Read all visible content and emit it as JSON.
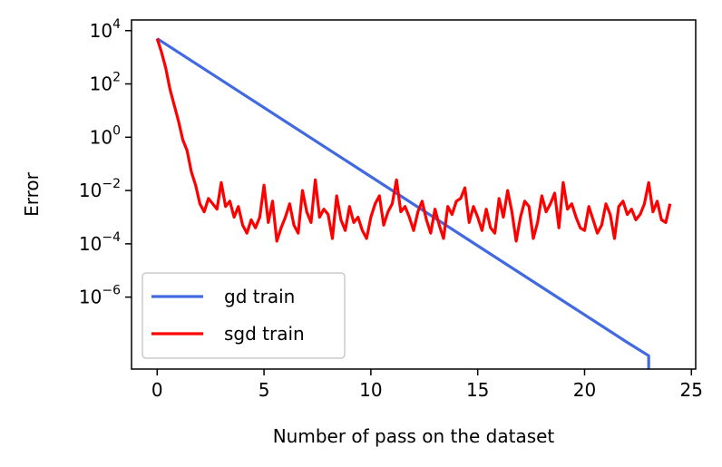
{
  "chart_data": {
    "type": "line",
    "xlabel": "Number of pass on the dataset",
    "ylabel": "Error",
    "yscale": "log",
    "xlim": [
      -1.2,
      25.2
    ],
    "ylim_log10": [
      -8.7,
      4.4
    ],
    "x_ticks": [
      0,
      5,
      10,
      15,
      20,
      25
    ],
    "x_tick_labels": [
      "0",
      "5",
      "10",
      "15",
      "20",
      "25"
    ],
    "y_ticks_log10": [
      4,
      2,
      0,
      -2,
      -4,
      -6
    ],
    "y_tick_labels": [
      {
        "base": "10",
        "exp": "4"
      },
      {
        "base": "10",
        "exp": "2"
      },
      {
        "base": "10",
        "exp": "0"
      },
      {
        "base": "10",
        "exp": "−2"
      },
      {
        "base": "10",
        "exp": "−4"
      },
      {
        "base": "10",
        "exp": "−6"
      }
    ],
    "grid": false,
    "legend_position": "lower-left",
    "series": [
      {
        "name": "gd train",
        "color": "#4169e1",
        "x": [
          0,
          22,
          23,
          23
        ],
        "log10_y": [
          3.7,
          -7.7,
          -8.2,
          -8.7
        ]
      },
      {
        "name": "sgd train",
        "color": "#ff0000",
        "x": [
          0,
          0.2,
          0.4,
          0.6,
          0.8,
          1.0,
          1.2,
          1.4,
          1.6,
          1.8,
          2.0,
          2.2,
          2.4,
          2.6,
          2.8,
          3.0,
          3.2,
          3.4,
          3.6,
          3.8,
          4.0,
          4.2,
          4.4,
          4.6,
          4.8,
          5.0,
          5.2,
          5.4,
          5.6,
          5.8,
          6.0,
          6.2,
          6.4,
          6.6,
          6.8,
          7.0,
          7.2,
          7.4,
          7.6,
          7.8,
          8.0,
          8.2,
          8.4,
          8.6,
          8.8,
          9.0,
          9.2,
          9.4,
          9.6,
          9.8,
          10.0,
          10.2,
          10.4,
          10.6,
          10.8,
          11.0,
          11.2,
          11.4,
          11.6,
          11.8,
          12.0,
          12.2,
          12.4,
          12.6,
          12.8,
          13.0,
          13.2,
          13.4,
          13.6,
          13.8,
          14.0,
          14.2,
          14.4,
          14.6,
          14.8,
          15.0,
          15.2,
          15.4,
          15.6,
          15.8,
          16.0,
          16.2,
          16.4,
          16.6,
          16.8,
          17.0,
          17.2,
          17.4,
          17.6,
          17.8,
          18.0,
          18.2,
          18.4,
          18.6,
          18.8,
          19.0,
          19.2,
          19.4,
          19.6,
          19.8,
          20.0,
          20.2,
          20.4,
          20.6,
          20.8,
          21.0,
          21.2,
          21.4,
          21.6,
          21.8,
          22.0,
          22.2,
          22.4,
          22.6,
          22.8,
          23.0,
          23.2,
          23.4,
          23.6,
          23.8,
          24.0
        ],
        "log10_y": [
          3.7,
          3.2,
          2.6,
          1.8,
          1.2,
          0.6,
          -0.1,
          -0.5,
          -1.3,
          -1.8,
          -2.5,
          -2.8,
          -2.3,
          -2.5,
          -2.7,
          -1.7,
          -2.6,
          -2.4,
          -3.0,
          -2.6,
          -3.3,
          -3.6,
          -3.1,
          -3.4,
          -3.0,
          -1.8,
          -3.2,
          -2.4,
          -3.9,
          -3.4,
          -3.0,
          -2.5,
          -3.3,
          -3.6,
          -2.0,
          -2.8,
          -3.2,
          -1.6,
          -3.0,
          -2.7,
          -2.9,
          -3.8,
          -2.2,
          -3.1,
          -3.5,
          -2.6,
          -3.2,
          -3.0,
          -3.5,
          -3.8,
          -3.0,
          -2.5,
          -2.2,
          -3.3,
          -2.8,
          -2.5,
          -1.6,
          -2.8,
          -2.6,
          -3.0,
          -3.5,
          -2.8,
          -2.4,
          -3.1,
          -3.6,
          -2.7,
          -3.3,
          -3.8,
          -2.6,
          -2.9,
          -2.4,
          -2.3,
          -1.9,
          -3.2,
          -2.6,
          -3.0,
          -3.5,
          -2.7,
          -3.4,
          -3.6,
          -2.3,
          -3.0,
          -2.0,
          -2.8,
          -3.9,
          -3.0,
          -2.4,
          -2.6,
          -3.8,
          -3.2,
          -2.2,
          -2.8,
          -2.5,
          -2.1,
          -3.4,
          -1.7,
          -2.7,
          -2.5,
          -3.0,
          -3.4,
          -3.5,
          -2.6,
          -3.1,
          -3.6,
          -3.3,
          -2.5,
          -2.9,
          -3.8,
          -2.6,
          -2.4,
          -2.9,
          -2.7,
          -3.1,
          -2.9,
          -2.5,
          -1.7,
          -2.8,
          -2.4,
          -3.1,
          -3.2,
          -2.5
        ]
      }
    ]
  }
}
